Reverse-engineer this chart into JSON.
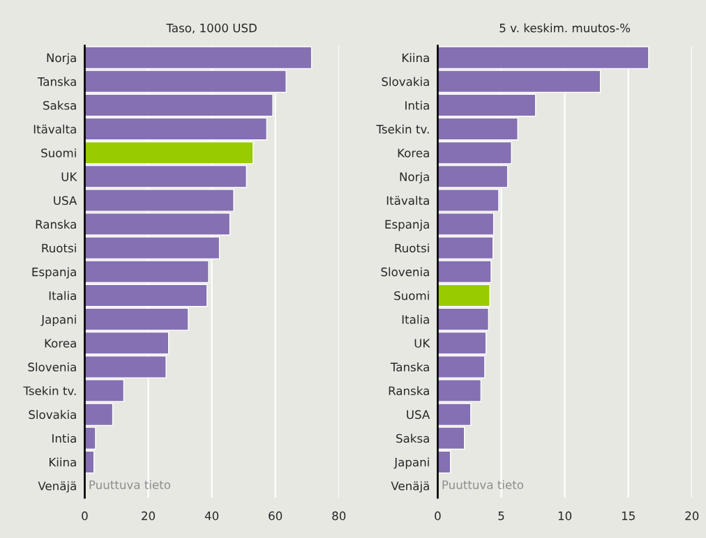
{
  "chart_data": [
    {
      "type": "bar",
      "orientation": "horizontal",
      "title": "Taso, 1000 USD",
      "categories": [
        "Norja",
        "Tanska",
        "Saksa",
        "Itävalta",
        "Suomi",
        "UK",
        "USA",
        "Ranska",
        "Ruotsi",
        "Espanja",
        "Italia",
        "Japani",
        "Korea",
        "Slovenia",
        "Tsekin tv.",
        "Slovakia",
        "Intia",
        "Kiina",
        "Venäjä"
      ],
      "values": [
        71.4,
        63.4,
        59.2,
        57.3,
        53.0,
        50.9,
        46.9,
        45.7,
        42.4,
        39.0,
        38.5,
        32.6,
        26.4,
        25.6,
        12.3,
        8.8,
        3.4,
        2.9,
        null
      ],
      "colors": [
        "#8470b2",
        "#8470b2",
        "#8470b2",
        "#8470b2",
        "#99cc00",
        "#8470b2",
        "#8470b2",
        "#8470b2",
        "#8470b2",
        "#8470b2",
        "#8470b2",
        "#8470b2",
        "#8470b2",
        "#8470b2",
        "#8470b2",
        "#8470b2",
        "#8470b2",
        "#8470b2",
        "#8470b2"
      ],
      "xlim": [
        0,
        80
      ],
      "xticks": [
        0,
        20,
        40,
        60,
        80
      ],
      "grid": "x",
      "annotations": [
        "Puuttuva tieto"
      ]
    },
    {
      "type": "bar",
      "orientation": "horizontal",
      "title": "5 v. keskim. muutos-%",
      "categories": [
        "Kiina",
        "Slovakia",
        "Intia",
        "Tsekin tv.",
        "Korea",
        "Norja",
        "Itävalta",
        "Espanja",
        "Ruotsi",
        "Slovenia",
        "Suomi",
        "Italia",
        "UK",
        "Tanska",
        "Ranska",
        "USA",
        "Saksa",
        "Japani",
        "Venäjä"
      ],
      "values": [
        16.6,
        12.8,
        7.7,
        6.3,
        5.8,
        5.5,
        4.8,
        4.4,
        4.35,
        4.2,
        4.1,
        4.0,
        3.8,
        3.7,
        3.4,
        2.6,
        2.1,
        1.0,
        null
      ],
      "colors": [
        "#8470b2",
        "#8470b2",
        "#8470b2",
        "#8470b2",
        "#8470b2",
        "#8470b2",
        "#8470b2",
        "#8470b2",
        "#8470b2",
        "#8470b2",
        "#99cc00",
        "#8470b2",
        "#8470b2",
        "#8470b2",
        "#8470b2",
        "#8470b2",
        "#8470b2",
        "#8470b2",
        "#8470b2"
      ],
      "xlim": [
        0,
        20
      ],
      "xticks": [
        0,
        5,
        10,
        15,
        20
      ],
      "grid": "x",
      "annotations": [
        "Puuttuva tieto"
      ]
    }
  ]
}
